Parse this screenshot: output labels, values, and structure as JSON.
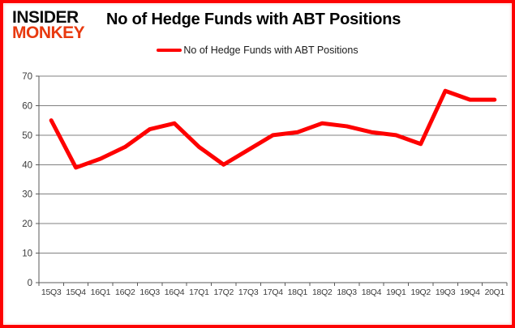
{
  "logo": {
    "line1": "INSIDER",
    "line2": "MONKEY",
    "monkey_color": "#e8390f"
  },
  "title": "No of Hedge Funds with ABT Positions",
  "legend": {
    "label": "No of Hedge Funds with ABT Positions",
    "line_color": "#fe0000"
  },
  "colors": {
    "series_line": "#fe0000",
    "gridline": "#808080",
    "axis": "#595959",
    "tick_label": "#3b3b3b",
    "frame_border": "#fd0202"
  },
  "chart_data": {
    "type": "line",
    "title": "No of Hedge Funds with ABT Positions",
    "categories": [
      "15Q3",
      "15Q4",
      "16Q1",
      "16Q2",
      "16Q3",
      "16Q4",
      "17Q1",
      "17Q2",
      "17Q3",
      "17Q4",
      "18Q1",
      "18Q2",
      "18Q3",
      "18Q4",
      "19Q1",
      "19Q2",
      "19Q3",
      "19Q4",
      "20Q1"
    ],
    "series": [
      {
        "name": "No of Hedge Funds with ABT Positions",
        "color": "#fe0000",
        "values": [
          55,
          39,
          42,
          46,
          52,
          54,
          46,
          40,
          45,
          50,
          51,
          54,
          53,
          51,
          50,
          47,
          65,
          62,
          62
        ]
      }
    ],
    "xlabel": "",
    "ylabel": "",
    "ylim": [
      0,
      70
    ],
    "yticks": [
      0,
      10,
      20,
      30,
      40,
      50,
      60,
      70
    ],
    "grid": true,
    "legend_position": "top-center"
  }
}
